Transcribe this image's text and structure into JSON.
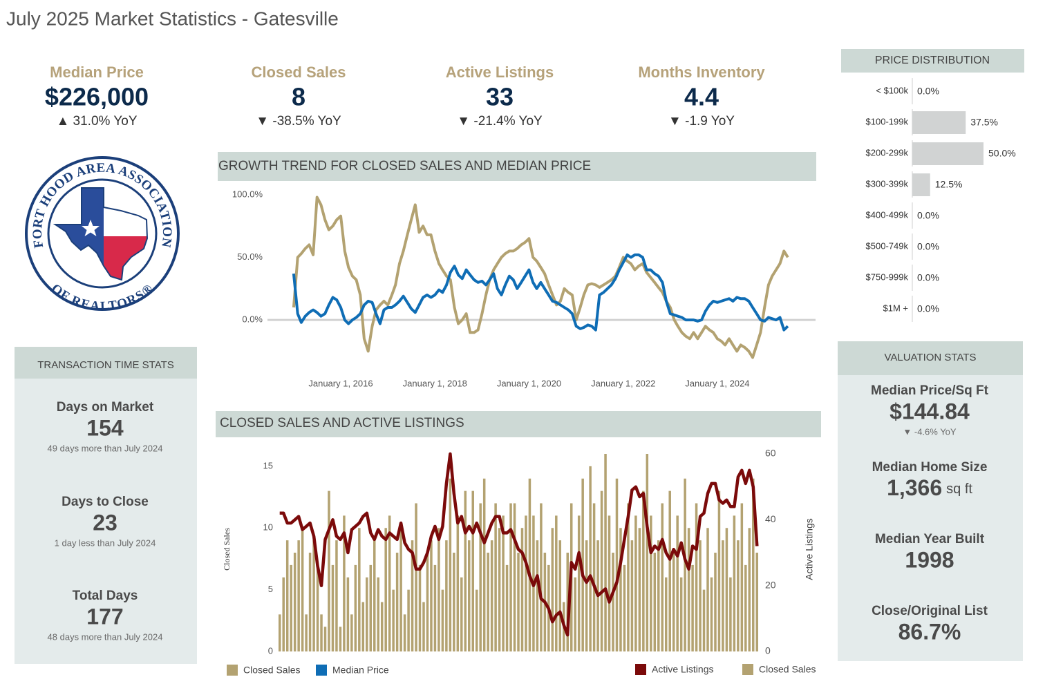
{
  "page_title": "July 2025 Market Statistics - Gatesville",
  "kpis": [
    {
      "label": "Median Price",
      "value": "$226,000",
      "change": "▲ 31.0% YoY"
    },
    {
      "label": "Closed Sales",
      "value": "8",
      "change": "▼ -38.5% YoY"
    },
    {
      "label": "Active Listings",
      "value": "33",
      "change": "▼ -21.4% YoY"
    },
    {
      "label": "Months Inventory",
      "value": "4.4",
      "change": "▼ -1.9 YoY"
    }
  ],
  "logo": {
    "top": "FORT HOOD AREA ASSOCIATION",
    "bottom": "OF REALTORS®"
  },
  "transaction_stats": {
    "title": "TRANSACTION TIME STATS",
    "items": [
      {
        "label": "Days on Market",
        "value": "154",
        "note": "49 days more than July 2024"
      },
      {
        "label": "Days to Close",
        "value": "23",
        "note": "1 day less than July 2024"
      },
      {
        "label": "Total Days",
        "value": "177",
        "note": "48 days more than July 2024"
      }
    ]
  },
  "valuation_stats": {
    "title": "VALUATION STATS",
    "items": [
      {
        "label": "Median Price/Sq Ft",
        "value": "$144.84",
        "note": "▼ -4.6% YoY"
      },
      {
        "label": "Median Home Size",
        "value": "1,366",
        "unit": "sq ft"
      },
      {
        "label": "Median Year Built",
        "value": "1998"
      },
      {
        "label": "Close/Original List",
        "value": "86.7%"
      }
    ]
  },
  "chart_data": [
    {
      "type": "line",
      "title": "GROWTH TREND FOR CLOSED SALES AND MEDIAN PRICE",
      "x": [
        "2015-01-01",
        "2015-02-01",
        "2015-03-01",
        "2015-04-01",
        "2015-05-01",
        "2015-06-01",
        "2015-07-01",
        "2015-08-01",
        "2015-09-01",
        "2015-10-01",
        "2015-11-01",
        "2015-12-01",
        "2016-01-01",
        "2016-02-01",
        "2016-03-01",
        "2016-04-01",
        "2016-05-01",
        "2016-06-01",
        "2016-07-01",
        "2016-08-01",
        "2016-09-01",
        "2016-10-01",
        "2016-11-01",
        "2016-12-01",
        "2017-01-01",
        "2017-02-01",
        "2017-03-01",
        "2017-04-01",
        "2017-05-01",
        "2017-06-01",
        "2017-07-01",
        "2017-08-01",
        "2017-09-01",
        "2017-10-01",
        "2017-11-01",
        "2017-12-01",
        "2018-01-01",
        "2018-02-01",
        "2018-03-01",
        "2018-04-01",
        "2018-05-01",
        "2018-06-01",
        "2018-07-01",
        "2018-08-01",
        "2018-09-01",
        "2018-10-01",
        "2018-11-01",
        "2018-12-01",
        "2019-01-01",
        "2019-02-01",
        "2019-03-01",
        "2019-04-01",
        "2019-05-01",
        "2019-06-01",
        "2019-07-01",
        "2019-08-01",
        "2019-09-01",
        "2019-10-01",
        "2019-11-01",
        "2019-12-01",
        "2020-01-01",
        "2020-02-01",
        "2020-03-01",
        "2020-04-01",
        "2020-05-01",
        "2020-06-01",
        "2020-07-01",
        "2020-08-01",
        "2020-09-01",
        "2020-10-01",
        "2020-11-01",
        "2020-12-01",
        "2021-01-01",
        "2021-02-01",
        "2021-03-01",
        "2021-04-01",
        "2021-05-01",
        "2021-06-01",
        "2021-07-01",
        "2021-08-01",
        "2021-09-01",
        "2021-10-01",
        "2021-11-01",
        "2021-12-01",
        "2022-01-01",
        "2022-02-01",
        "2022-03-01",
        "2022-04-01",
        "2022-05-01",
        "2022-06-01",
        "2022-07-01",
        "2022-08-01",
        "2022-09-01",
        "2022-10-01",
        "2022-11-01",
        "2022-12-01",
        "2023-01-01",
        "2023-02-01",
        "2023-03-01",
        "2023-04-01",
        "2023-05-01",
        "2023-06-01",
        "2023-07-01",
        "2023-08-01",
        "2023-09-01",
        "2023-10-01",
        "2023-11-01",
        "2023-12-01",
        "2024-01-01",
        "2024-02-01",
        "2024-03-01",
        "2024-04-01",
        "2024-05-01",
        "2024-06-01",
        "2024-07-01",
        "2024-08-01",
        "2024-09-01",
        "2024-10-01",
        "2024-11-01",
        "2024-12-01",
        "2025-01-01",
        "2025-02-01",
        "2025-03-01",
        "2025-04-01",
        "2025-05-01",
        "2025-06-01",
        "2025-07-01"
      ],
      "series": [
        {
          "name": "Closed Sales",
          "color": "#b3a271",
          "values": [
            10,
            50,
            53,
            57,
            60,
            52,
            98,
            92,
            80,
            72,
            75,
            80,
            83,
            55,
            42,
            35,
            32,
            20,
            -15,
            -25,
            -5,
            8,
            12,
            15,
            12,
            20,
            28,
            45,
            55,
            68,
            80,
            92,
            70,
            75,
            68,
            68,
            55,
            45,
            40,
            35,
            32,
            10,
            -3,
            0,
            5,
            -10,
            -10,
            -8,
            5,
            20,
            32,
            40,
            45,
            50,
            53,
            55,
            55,
            57,
            60,
            62,
            65,
            50,
            47,
            42,
            37,
            28,
            20,
            12,
            15,
            25,
            22,
            20,
            0,
            10,
            20,
            28,
            29,
            28,
            26,
            28,
            30,
            32,
            35,
            42,
            50,
            47,
            45,
            40,
            43,
            45,
            38,
            34,
            30,
            26,
            22,
            15,
            10,
            0,
            -5,
            -10,
            -13,
            -15,
            -10,
            -15,
            -10,
            -5,
            -8,
            -10,
            -15,
            -17,
            -20,
            -15,
            -20,
            -25,
            -20,
            -22,
            -25,
            -30,
            -20,
            -10,
            10,
            28,
            35,
            40,
            45,
            55,
            50
          ]
        },
        {
          "name": "Median Price",
          "color": "#0f6db5",
          "values": [
            37,
            5,
            -2,
            3,
            6,
            8,
            6,
            3,
            5,
            12,
            18,
            16,
            10,
            0,
            -3,
            0,
            2,
            5,
            12,
            15,
            14,
            5,
            -3,
            8,
            10,
            10,
            12,
            15,
            19,
            14,
            9,
            6,
            12,
            18,
            20,
            18,
            20,
            24,
            22,
            28,
            38,
            43,
            36,
            33,
            40,
            36,
            32,
            30,
            31,
            28,
            32,
            37,
            25,
            20,
            28,
            35,
            32,
            25,
            30,
            35,
            40,
            30,
            25,
            30,
            25,
            20,
            15,
            14,
            12,
            10,
            8,
            5,
            -5,
            -7,
            -6,
            -4,
            -5,
            -8,
            20,
            22,
            25,
            28,
            33,
            40,
            46,
            52,
            50,
            52,
            52,
            50,
            40,
            40,
            37,
            35,
            30,
            15,
            5,
            4,
            3,
            2,
            0,
            0,
            0,
            -1,
            0,
            7,
            12,
            15,
            14,
            15,
            16,
            17,
            15,
            18,
            17,
            17,
            15,
            10,
            5,
            0,
            -1,
            2,
            1,
            0,
            2,
            -8,
            -5
          ]
        }
      ],
      "xlim": [
        "2014-06-01",
        "2026-02-01"
      ],
      "xticks": [
        {
          "value": "2016-01-01",
          "label": "January 1, 2016"
        },
        {
          "value": "2018-01-01",
          "label": "January 1, 2018"
        },
        {
          "value": "2020-01-01",
          "label": "January 1, 2020"
        },
        {
          "value": "2022-01-01",
          "label": "January 1, 2022"
        },
        {
          "value": "2024-01-01",
          "label": "January 1, 2024"
        }
      ],
      "ylim": [
        -38,
        106
      ],
      "yticks": [
        {
          "value": 0,
          "label": "0.0%"
        },
        {
          "value": 50,
          "label": "50.0%"
        },
        {
          "value": 100,
          "label": "100.0%"
        }
      ],
      "zero_line": true
    },
    {
      "type": "bar",
      "title": "CLOSED SALES AND ACTIVE LISTINGS",
      "y_label": "Closed Sales",
      "y2_label": "Active Listings",
      "series": [
        {
          "name": "Active Listings",
          "type": "line",
          "axis": "y2",
          "color": "#7b0a0a",
          "values": [
            42,
            42,
            39,
            39,
            40,
            41,
            37,
            38,
            39,
            35,
            26,
            20,
            34,
            37,
            40,
            35,
            34,
            36,
            30,
            37,
            38,
            39,
            41,
            42,
            36,
            34,
            37,
            35,
            34,
            36,
            35,
            34,
            39,
            33,
            31,
            30,
            25,
            25,
            27,
            30,
            35,
            38,
            34,
            38,
            51,
            60,
            48,
            39,
            41,
            36,
            38,
            36,
            39,
            36,
            33,
            36,
            39,
            41,
            41,
            36,
            36,
            37,
            34,
            31,
            30,
            27,
            23,
            20,
            23,
            16,
            15,
            13,
            9,
            11,
            12,
            8,
            5,
            27,
            25,
            30,
            23,
            21,
            23,
            20,
            17,
            18,
            19,
            15,
            18,
            21,
            27,
            34,
            41,
            49,
            50,
            47,
            48,
            38,
            30,
            32,
            31,
            34,
            30,
            28,
            31,
            29,
            33,
            28,
            25,
            32,
            31,
            41,
            42,
            48,
            51,
            51,
            46,
            45,
            46,
            44,
            44,
            53,
            55,
            51,
            55,
            50,
            32
          ]
        },
        {
          "name": "Closed Sales",
          "color": "#b3a271",
          "values": [
            3,
            6,
            9,
            7,
            8,
            9,
            10,
            3,
            8,
            9,
            7,
            3,
            2,
            13,
            7,
            9,
            2,
            11,
            6,
            3,
            7,
            10,
            4,
            6,
            7,
            9,
            6,
            4,
            10,
            11,
            5,
            8,
            10,
            3,
            5,
            9,
            12,
            7,
            4,
            8,
            9,
            7,
            10,
            5,
            9,
            14,
            8,
            11,
            6,
            13,
            9,
            13,
            5,
            12,
            14,
            8,
            9,
            12,
            10,
            11,
            7,
            12,
            12,
            8,
            10,
            11,
            14,
            11,
            9,
            12,
            8,
            7,
            10,
            11,
            9,
            4,
            8,
            12,
            6,
            11,
            14,
            9,
            15,
            12,
            9,
            13,
            16,
            11,
            8,
            14,
            10,
            7,
            12,
            9,
            11,
            10,
            13,
            16,
            11,
            8,
            9,
            12,
            6,
            13,
            8,
            11,
            6,
            14,
            10,
            7,
            12,
            9,
            5,
            10,
            6,
            8,
            13,
            9,
            10,
            6,
            11,
            9,
            12,
            7,
            10,
            14,
            8
          ]
        }
      ],
      "ylim": [
        0,
        16
      ],
      "yticks": [
        0,
        5,
        10,
        15
      ],
      "y2lim": [
        0,
        60
      ],
      "y2ticks": [
        0,
        20,
        40,
        60
      ]
    },
    {
      "type": "hbar",
      "title": "PRICE DISTRIBUTION",
      "categories": [
        "< $100k",
        "$100-199k",
        "$200-299k",
        "$300-399k",
        "$400-499k",
        "$500-749k",
        "$750-999k",
        "$1M +"
      ],
      "values": [
        0,
        37.5,
        50,
        12.5,
        0,
        0,
        0,
        0
      ],
      "value_labels": [
        "0.0%",
        "37.5%",
        "50.0%",
        "12.5%",
        "0.0%",
        "0.0%",
        "0.0%",
        "0.0%"
      ],
      "color": "#d1d3d3",
      "xlim": [
        0,
        50
      ]
    }
  ]
}
